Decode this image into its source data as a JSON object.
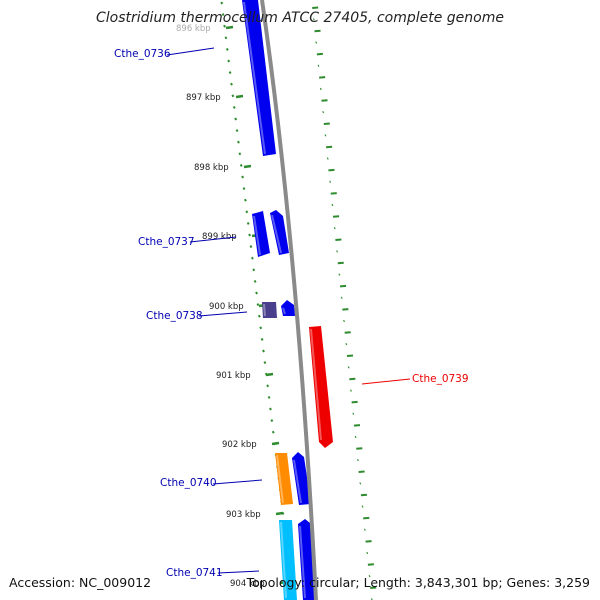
{
  "title": "Clostridium thermocellum ATCC 27405, complete genome",
  "accession": "Accession: NC_009012",
  "summary": "Topology: circular; Length: 3,843,301 bp; Genes: 3,259",
  "colors": {
    "forward_cds": "#0000ee",
    "reverse_cds": "#ee0000",
    "tick": "#2e8b2e",
    "backbone": "#8a8a8a"
  },
  "ruler_labels": [
    "896 kbp",
    "897 kbp",
    "898 kbp",
    "899 kbp",
    "900 kbp",
    "901 kbp",
    "902 kbp",
    "903 kbp",
    "904 kbp"
  ],
  "genes": [
    {
      "label": "Cthe_0736",
      "strand": "+",
      "color": "#0000ee"
    },
    {
      "label": "Cthe_0737",
      "strand": "+",
      "color": "#0000ee"
    },
    {
      "label": "Cthe_0738",
      "strand": "+",
      "color": "#0000ee"
    },
    {
      "label": "Cthe_0739",
      "strand": "-",
      "color": "#ee0000"
    },
    {
      "label": "Cthe_0740",
      "strand": "+",
      "color": "#0000ee"
    },
    {
      "label": "Cthe_0741",
      "strand": "+",
      "color": "#0000ee"
    }
  ],
  "features": [
    {
      "color": "#0000ee"
    },
    {
      "color": "#0000ee"
    },
    {
      "color": "#0000ee"
    },
    {
      "color": "#4a3f8c"
    },
    {
      "color": "#0000ee"
    },
    {
      "color": "#ee0000"
    },
    {
      "color": "#ff8c00"
    },
    {
      "color": "#0000ee"
    },
    {
      "color": "#00bfff"
    },
    {
      "color": "#0000ee"
    }
  ]
}
